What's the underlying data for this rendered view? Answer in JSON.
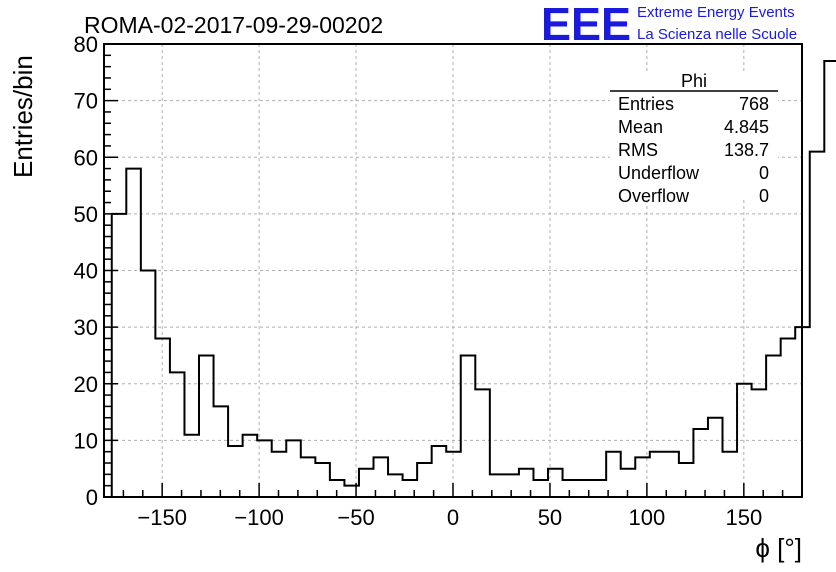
{
  "chart_data": {
    "type": "histogram",
    "title": "ROMA-02-2017-09-29-00202",
    "xlabel": "ϕ [°]",
    "ylabel": "Entries/bin",
    "xlim": [
      -180,
      180
    ],
    "ylim": [
      0,
      80
    ],
    "grid": true,
    "x_ticks": [
      -150,
      -100,
      -50,
      0,
      50,
      100,
      150
    ],
    "x_tick_labels": [
      "−150",
      "−100",
      "−50",
      "0",
      "50",
      "100",
      "150"
    ],
    "y_ticks": [
      0,
      10,
      20,
      30,
      40,
      50,
      60,
      70,
      80
    ],
    "y_tick_labels": [
      "0",
      "10",
      "20",
      "30",
      "40",
      "50",
      "60",
      "70",
      "80"
    ],
    "bin_edges_start": -176,
    "bin_width": 7.5,
    "values": [
      50,
      58,
      40,
      28,
      22,
      11,
      25,
      16,
      9,
      11,
      10,
      8,
      10,
      7,
      6,
      3,
      2,
      5,
      7,
      4,
      3,
      6,
      9,
      8,
      25,
      19,
      4,
      4,
      5,
      3,
      5,
      3,
      3,
      3,
      8,
      5,
      7,
      8,
      8,
      6,
      12,
      14,
      8,
      20,
      19,
      25,
      28,
      30,
      61,
      77
    ],
    "stats_box": {
      "name": "Phi",
      "position": "top-right",
      "rows": [
        {
          "label": "Entries",
          "value": "768"
        },
        {
          "label": "Mean",
          "value": "4.845"
        },
        {
          "label": "RMS",
          "value": "138.7"
        },
        {
          "label": "Underflow",
          "value": "0"
        },
        {
          "label": "Overflow",
          "value": "0"
        }
      ]
    }
  },
  "logo": {
    "mark": "EEE",
    "line1": "Extreme Energy Events",
    "line2": "La Scienza nelle Scuole",
    "color": "#1a1adc"
  }
}
